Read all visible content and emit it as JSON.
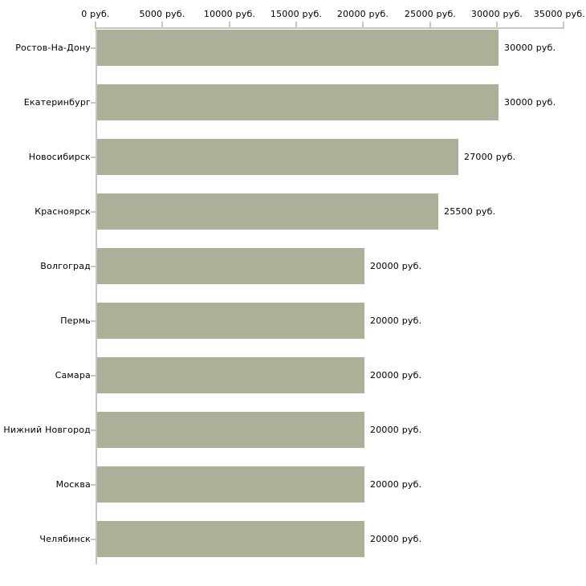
{
  "chart_data": {
    "type": "bar",
    "orientation": "horizontal",
    "title": "",
    "categories": [
      "Ростов-На-Дону",
      "Екатеринбург",
      "Новосибирск",
      "Красноярск",
      "Волгоград",
      "Пермь",
      "Самара",
      "Нижний Новгород",
      "Москва",
      "Челябинск"
    ],
    "values": [
      30000,
      30000,
      27000,
      25500,
      20000,
      20000,
      20000,
      20000,
      20000,
      20000
    ],
    "bar_labels": [
      "30000 руб.",
      "30000 руб.",
      "27000 руб.",
      "25500 руб.",
      "20000 руб.",
      "20000 руб.",
      "20000 руб.",
      "20000 руб.",
      "20000 руб.",
      "20000 руб."
    ],
    "x_tick_values": [
      0,
      5000,
      10000,
      15000,
      20000,
      25000,
      30000,
      35000
    ],
    "x_tick_labels": [
      "0 руб.",
      "5000 руб.",
      "10000 руб.",
      "15000 руб.",
      "20000 руб.",
      "25000 руб.",
      "30000 руб.",
      "35000 руб."
    ],
    "xlim": [
      0,
      35000
    ],
    "unit": "руб.",
    "axis_position": "top",
    "grid": false,
    "legend": null,
    "colors": {
      "bar": "#abb198",
      "axis_line": "#c8c8c8",
      "tick_mark": "#cbcb9e",
      "text": "#000000",
      "background": "#ffffff"
    }
  }
}
